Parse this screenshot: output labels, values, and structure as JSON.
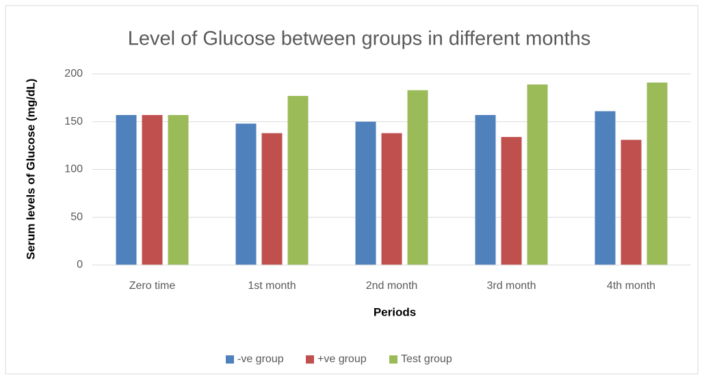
{
  "chart_data": {
    "type": "bar",
    "title": "Level of Glucose between groups in different months",
    "x_label": "Periods",
    "y_label": "Serum levels of Glucose (mg/dL)",
    "categories": [
      "Zero time",
      "1st month",
      "2nd month",
      "3rd month",
      "4th month"
    ],
    "series": [
      {
        "name": "-ve group",
        "color": "#4f81bd",
        "values": [
          157,
          148,
          150,
          157,
          161
        ]
      },
      {
        "name": "+ve group",
        "color": "#c0504d",
        "values": [
          157,
          138,
          138,
          134,
          131
        ]
      },
      {
        "name": "Test group",
        "color": "#9bbb59",
        "values": [
          157,
          177,
          183,
          189,
          191
        ]
      }
    ],
    "ylim": [
      0,
      200
    ],
    "yticks": [
      0,
      50,
      100,
      150,
      200
    ],
    "grid": true,
    "legend": "bottom"
  }
}
